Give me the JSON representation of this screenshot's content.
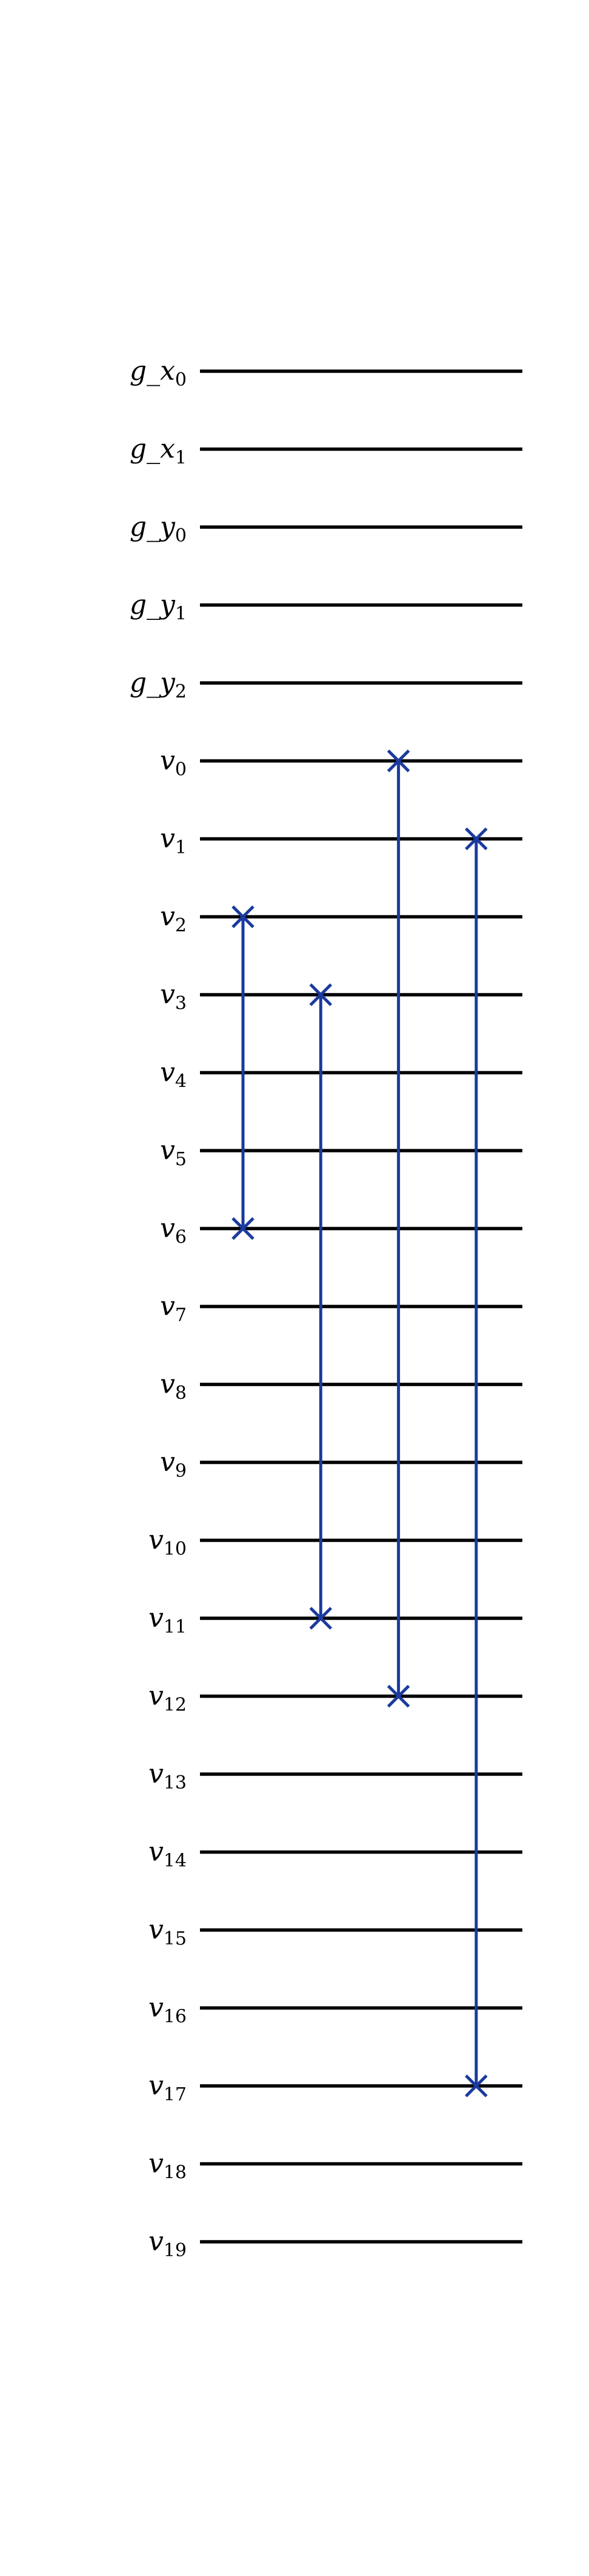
{
  "circuit": {
    "qubits": [
      {
        "name": "g_x",
        "index": "0"
      },
      {
        "name": "g_x",
        "index": "1"
      },
      {
        "name": "g_y",
        "index": "0"
      },
      {
        "name": "g_y",
        "index": "1"
      },
      {
        "name": "g_y",
        "index": "2"
      },
      {
        "name": "v",
        "index": "0"
      },
      {
        "name": "v",
        "index": "1"
      },
      {
        "name": "v",
        "index": "2"
      },
      {
        "name": "v",
        "index": "3"
      },
      {
        "name": "v",
        "index": "4"
      },
      {
        "name": "v",
        "index": "5"
      },
      {
        "name": "v",
        "index": "6"
      },
      {
        "name": "v",
        "index": "7"
      },
      {
        "name": "v",
        "index": "8"
      },
      {
        "name": "v",
        "index": "9"
      },
      {
        "name": "v",
        "index": "10"
      },
      {
        "name": "v",
        "index": "11"
      },
      {
        "name": "v",
        "index": "12"
      },
      {
        "name": "v",
        "index": "13"
      },
      {
        "name": "v",
        "index": "14"
      },
      {
        "name": "v",
        "index": "15"
      },
      {
        "name": "v",
        "index": "16"
      },
      {
        "name": "v",
        "index": "17"
      },
      {
        "name": "v",
        "index": "18"
      },
      {
        "name": "v",
        "index": "19"
      }
    ],
    "gates": [
      {
        "type": "swap",
        "column": 0,
        "qubits": [
          7,
          11
        ]
      },
      {
        "type": "swap",
        "column": 1,
        "qubits": [
          8,
          16
        ]
      },
      {
        "type": "swap",
        "column": 2,
        "qubits": [
          5,
          17
        ]
      },
      {
        "type": "swap",
        "column": 3,
        "qubits": [
          6,
          22
        ]
      }
    ],
    "colors": {
      "wire": "#000000",
      "swap": "#1b3a9e"
    }
  }
}
